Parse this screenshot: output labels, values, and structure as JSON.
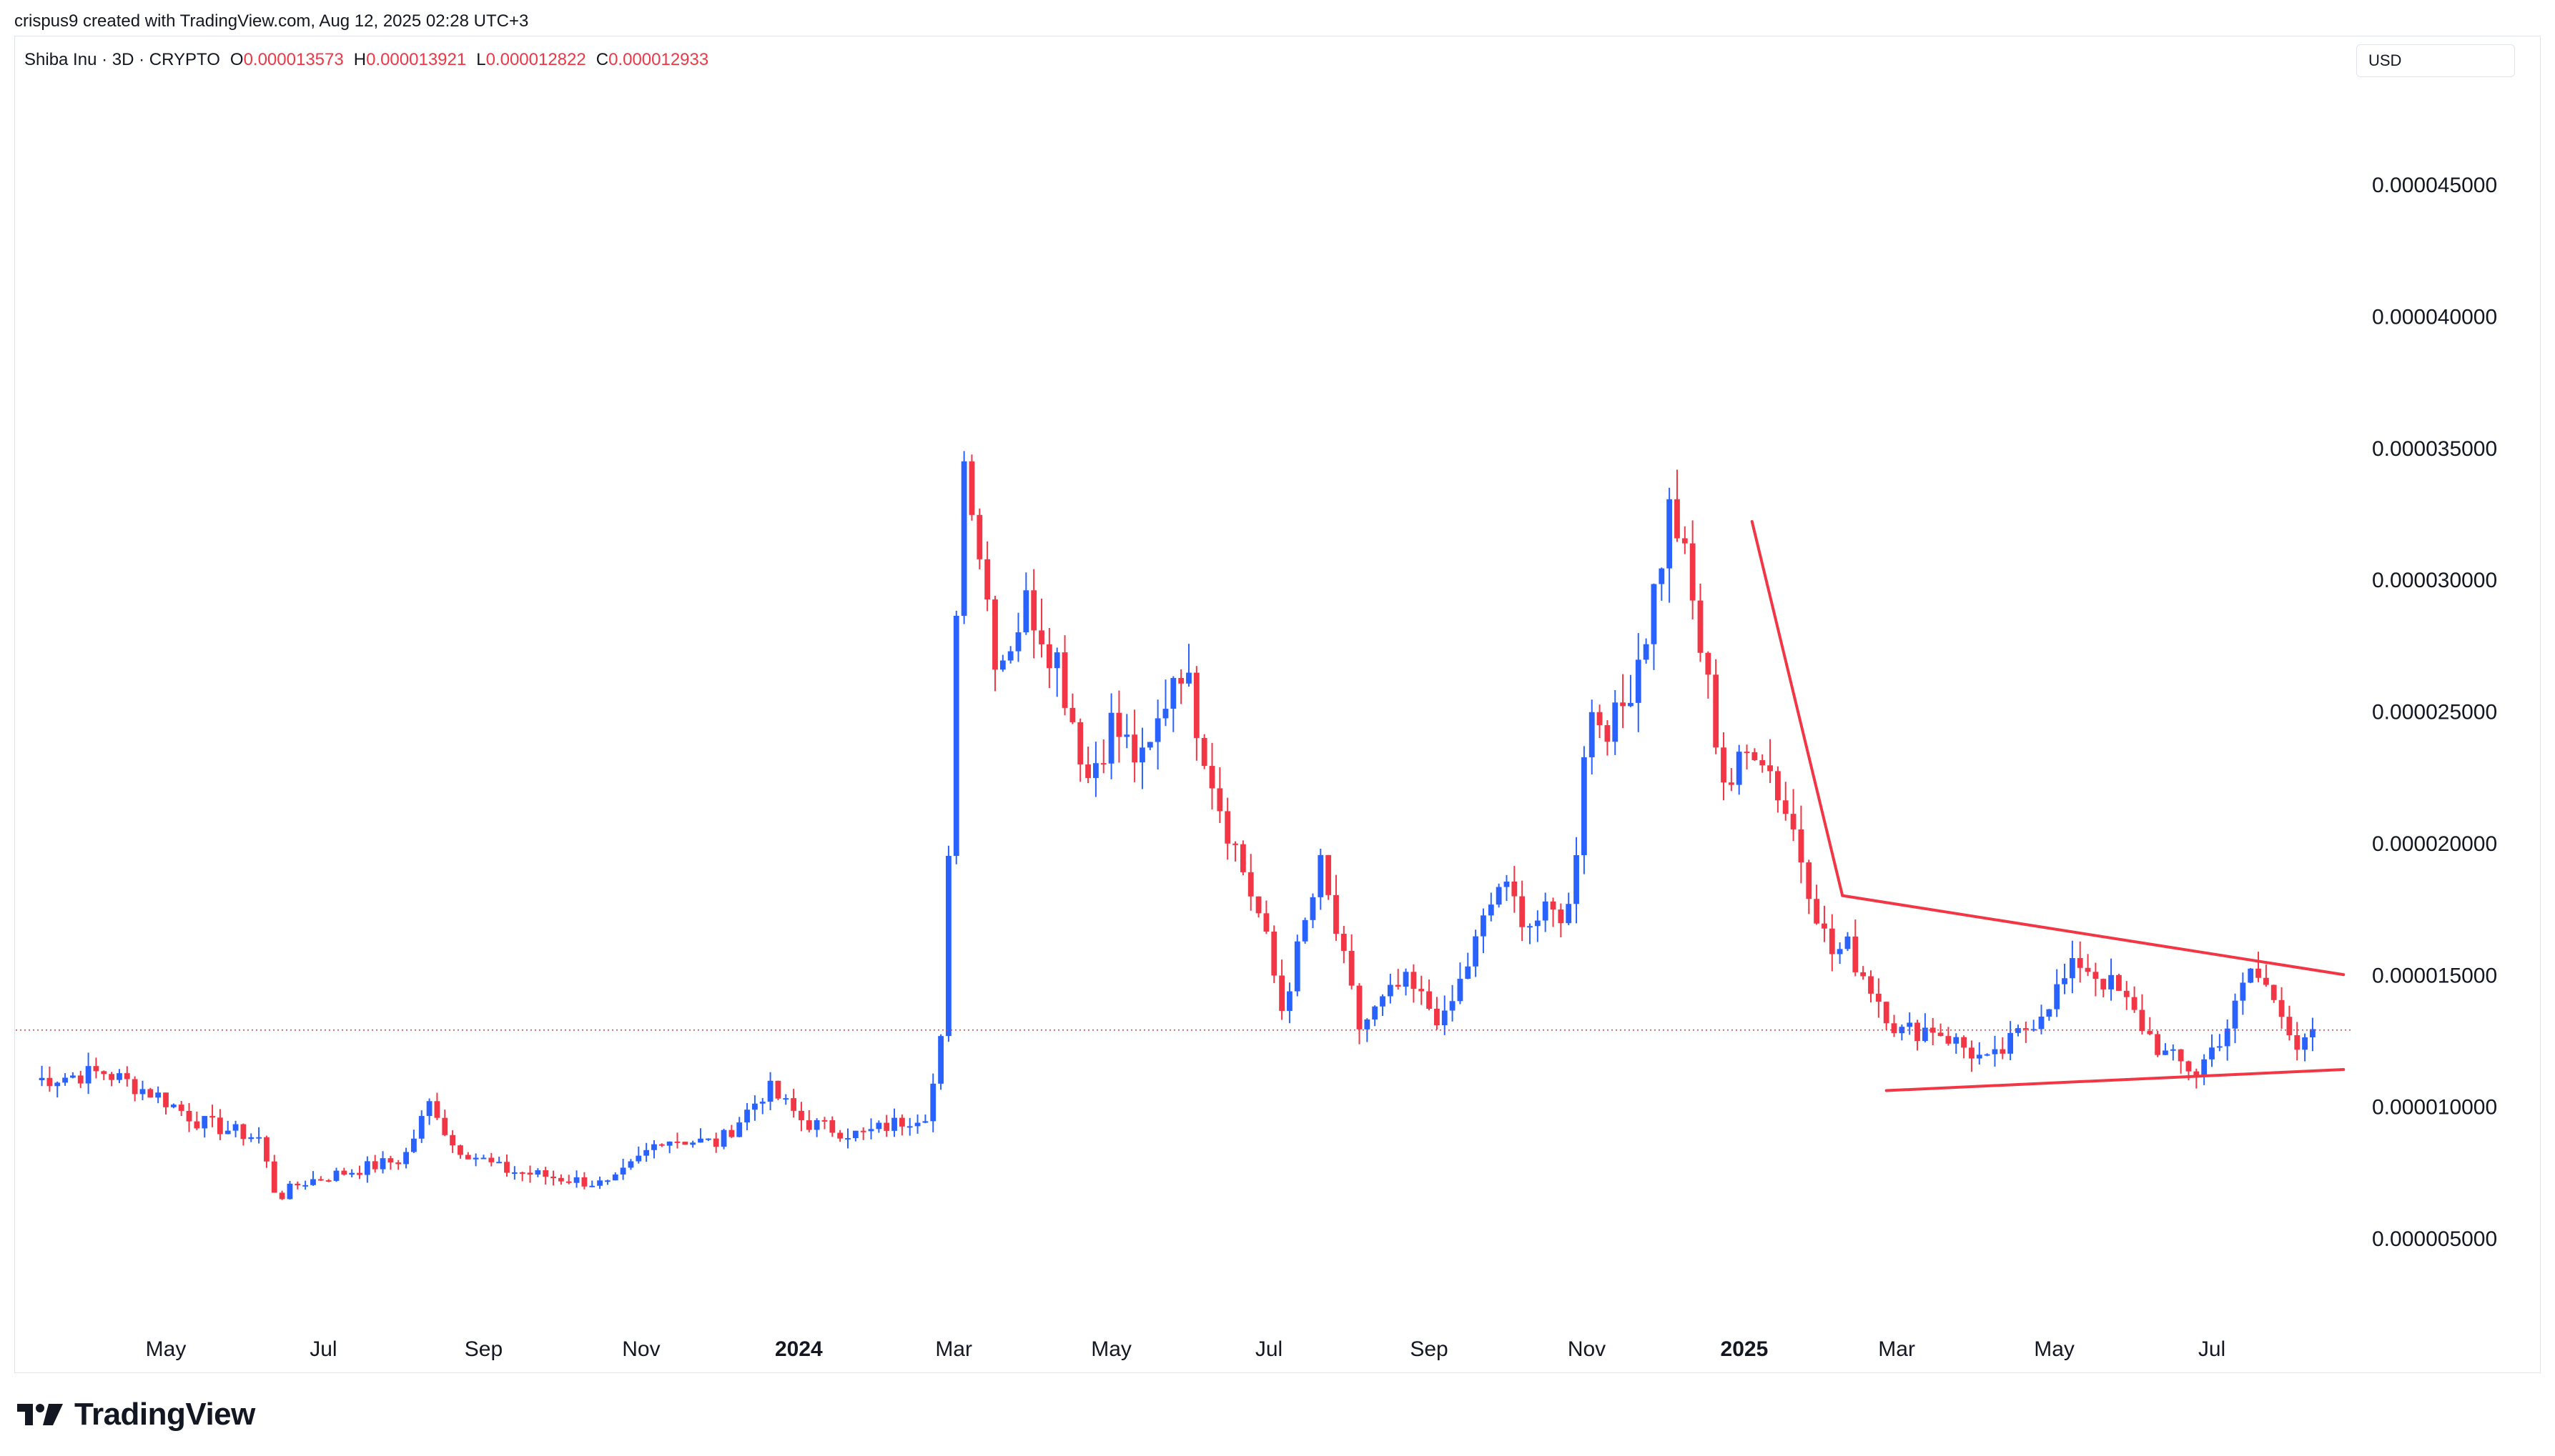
{
  "header": {
    "attribution": "crispus9 created with TradingView.com, Aug 12, 2025 02:28 UTC+3"
  },
  "legend": {
    "symbol": "Shiba Inu · 3D · CRYPTO",
    "open_label": "O",
    "open_value": "0.000013573",
    "high_label": "H",
    "high_value": "0.000013921",
    "low_label": "L",
    "low_value": "0.000012822",
    "close_label": "C",
    "close_value": "0.000012933"
  },
  "currency": "USD",
  "footer": {
    "brand": "TradingView"
  },
  "colors": {
    "up": "#2962ff",
    "down": "#f23645",
    "trendline": "#f23645",
    "grid": "#e0e3eb",
    "text": "#131722"
  },
  "chart_data": {
    "type": "candlestick",
    "title": "",
    "xlabel": "",
    "ylabel": "",
    "ylim": [
      0,
      4.9e-05
    ],
    "grid": false,
    "y_ticks": [
      {
        "value": 5e-06,
        "label": "0.000005000"
      },
      {
        "value": 1e-05,
        "label": "0.000010000"
      },
      {
        "value": 1.5e-05,
        "label": "0.000015000"
      },
      {
        "value": 2e-05,
        "label": "0.000020000"
      },
      {
        "value": 2.5e-05,
        "label": "0.000025000"
      },
      {
        "value": 3e-05,
        "label": "0.000030000"
      },
      {
        "value": 3.5e-05,
        "label": "0.000035000"
      },
      {
        "value": 4e-05,
        "label": "0.000040000"
      },
      {
        "value": 4.5e-05,
        "label": "0.000045000"
      }
    ],
    "x_ticks": [
      {
        "label": "May",
        "date": "2023-05-01",
        "bold": false
      },
      {
        "label": "Jul",
        "date": "2023-07-01",
        "bold": false
      },
      {
        "label": "Sep",
        "date": "2023-09-01",
        "bold": false
      },
      {
        "label": "Nov",
        "date": "2023-11-01",
        "bold": false
      },
      {
        "label": "2024",
        "date": "2024-01-01",
        "bold": true
      },
      {
        "label": "Mar",
        "date": "2024-03-01",
        "bold": false
      },
      {
        "label": "May",
        "date": "2024-05-01",
        "bold": false
      },
      {
        "label": "Jul",
        "date": "2024-07-01",
        "bold": false
      },
      {
        "label": "Sep",
        "date": "2024-09-01",
        "bold": false
      },
      {
        "label": "Nov",
        "date": "2024-11-01",
        "bold": false
      },
      {
        "label": "2025",
        "date": "2025-01-01",
        "bold": true
      },
      {
        "label": "Mar",
        "date": "2025-03-01",
        "bold": false
      },
      {
        "label": "May",
        "date": "2025-05-01",
        "bold": false
      },
      {
        "label": "Jul",
        "date": "2025-07-01",
        "bold": false
      }
    ],
    "candle_interval_days": 3,
    "last_price": 1.2933e-05,
    "price_line": {
      "value": 1.29e-05,
      "style": "dotted"
    },
    "close_path": [
      {
        "date": "2023-03-11",
        "close": 1.1e-05
      },
      {
        "date": "2023-04-07",
        "close": 1.13e-05
      },
      {
        "date": "2023-04-28",
        "close": 1.04e-05
      },
      {
        "date": "2023-05-14",
        "close": 9.4e-06
      },
      {
        "date": "2023-06-06",
        "close": 8.8e-06
      },
      {
        "date": "2023-06-13",
        "close": 6.5e-06
      },
      {
        "date": "2023-06-22",
        "close": 7.1e-06
      },
      {
        "date": "2023-07-14",
        "close": 7.6e-06
      },
      {
        "date": "2023-08-01",
        "close": 8e-06
      },
      {
        "date": "2023-08-12",
        "close": 1.03e-05
      },
      {
        "date": "2023-08-19",
        "close": 8.6e-06
      },
      {
        "date": "2023-09-08",
        "close": 7.6e-06
      },
      {
        "date": "2023-10-20",
        "close": 7e-06
      },
      {
        "date": "2023-11-09",
        "close": 8.8e-06
      },
      {
        "date": "2023-12-01",
        "close": 8.6e-06
      },
      {
        "date": "2023-12-20",
        "close": 1.07e-05
      },
      {
        "date": "2024-01-03",
        "close": 9.4e-06
      },
      {
        "date": "2024-01-25",
        "close": 8.9e-06
      },
      {
        "date": "2024-02-20",
        "close": 9.8e-06
      },
      {
        "date": "2024-02-26",
        "close": 1.29e-05
      },
      {
        "date": "2024-03-01",
        "close": 2.52e-05
      },
      {
        "date": "2024-03-03",
        "close": 3.35e-05
      },
      {
        "date": "2024-03-06",
        "close": 3.5e-05
      },
      {
        "date": "2024-03-12",
        "close": 3.05e-05
      },
      {
        "date": "2024-03-18",
        "close": 2.68e-05
      },
      {
        "date": "2024-03-30",
        "close": 2.92e-05
      },
      {
        "date": "2024-04-10",
        "close": 2.7e-05
      },
      {
        "date": "2024-04-22",
        "close": 2.25e-05
      },
      {
        "date": "2024-05-01",
        "close": 2.45e-05
      },
      {
        "date": "2024-05-14",
        "close": 2.28e-05
      },
      {
        "date": "2024-05-27",
        "close": 2.72e-05
      },
      {
        "date": "2024-06-12",
        "close": 2.15e-05
      },
      {
        "date": "2024-06-28",
        "close": 1.7e-05
      },
      {
        "date": "2024-07-06",
        "close": 1.37e-05
      },
      {
        "date": "2024-07-21",
        "close": 1.9e-05
      },
      {
        "date": "2024-08-05",
        "close": 1.3e-05
      },
      {
        "date": "2024-08-22",
        "close": 1.47e-05
      },
      {
        "date": "2024-09-07",
        "close": 1.32e-05
      },
      {
        "date": "2024-09-28",
        "close": 1.84e-05
      },
      {
        "date": "2024-10-10",
        "close": 1.7e-05
      },
      {
        "date": "2024-10-26",
        "close": 1.75e-05
      },
      {
        "date": "2024-11-01",
        "close": 2.5e-05
      },
      {
        "date": "2024-11-13",
        "close": 2.45e-05
      },
      {
        "date": "2024-11-25",
        "close": 2.85e-05
      },
      {
        "date": "2024-12-04",
        "close": 3.3e-05
      },
      {
        "date": "2024-12-13",
        "close": 2.85e-05
      },
      {
        "date": "2024-12-25",
        "close": 2.2e-05
      },
      {
        "date": "2025-01-06",
        "close": 2.4e-05
      },
      {
        "date": "2025-01-20",
        "close": 2.05e-05
      },
      {
        "date": "2025-02-03",
        "close": 1.58e-05
      },
      {
        "date": "2025-02-10",
        "close": 1.6e-05
      },
      {
        "date": "2025-03-02",
        "close": 1.28e-05
      },
      {
        "date": "2025-03-15",
        "close": 1.3e-05
      },
      {
        "date": "2025-04-06",
        "close": 1.16e-05
      },
      {
        "date": "2025-04-22",
        "close": 1.32e-05
      },
      {
        "date": "2025-05-11",
        "close": 1.55e-05
      },
      {
        "date": "2025-05-25",
        "close": 1.44e-05
      },
      {
        "date": "2025-06-12",
        "close": 1.2e-05
      },
      {
        "date": "2025-06-25",
        "close": 1.13e-05
      },
      {
        "date": "2025-07-08",
        "close": 1.32e-05
      },
      {
        "date": "2025-07-16",
        "close": 1.52e-05
      },
      {
        "date": "2025-07-28",
        "close": 1.38e-05
      },
      {
        "date": "2025-08-04",
        "close": 1.2e-05
      },
      {
        "date": "2025-08-11",
        "close": 1.29e-05
      }
    ],
    "annotations": {
      "trendlines": [
        {
          "name": "descending-line",
          "from": {
            "date": "2025-01-04",
            "price": 3.22e-05
          },
          "to": {
            "date": "2025-02-08",
            "price": 1.8e-05
          }
        },
        {
          "name": "wedge-upper",
          "from": {
            "date": "2025-02-08",
            "price": 1.8e-05
          },
          "to": {
            "date": "2025-08-21",
            "price": 1.5e-05
          }
        },
        {
          "name": "wedge-lower",
          "from": {
            "date": "2025-02-25",
            "price": 1.06e-05
          },
          "to": {
            "date": "2025-08-21",
            "price": 1.14e-05
          }
        }
      ]
    }
  }
}
